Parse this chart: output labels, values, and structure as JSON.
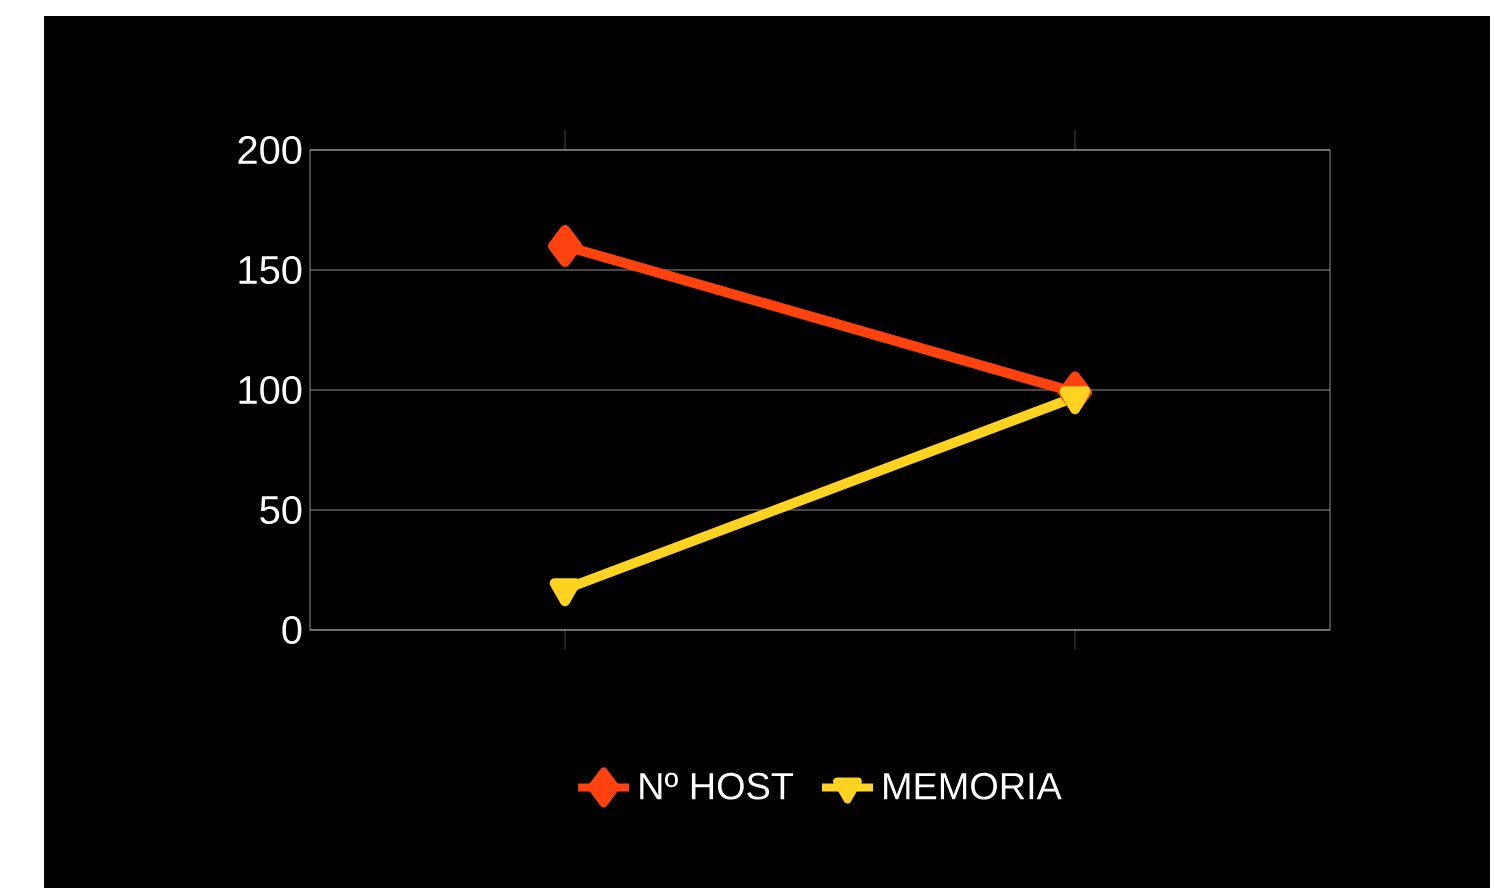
{
  "chart_data": {
    "type": "line",
    "categories": [
      null,
      null
    ],
    "series": [
      {
        "name": "Nº HOST",
        "color": "#ff420e",
        "values": [
          160,
          99
        ],
        "marker": "diamond"
      },
      {
        "name": "MEMORIA",
        "color": "#ffd320",
        "values": [
          17,
          97
        ],
        "marker": "triangle"
      }
    ],
    "ylim": [
      0,
      200
    ],
    "yticks": [
      0,
      50,
      100,
      150,
      200
    ],
    "grid": "y",
    "legend": "bottom",
    "line_style": "solid"
  }
}
